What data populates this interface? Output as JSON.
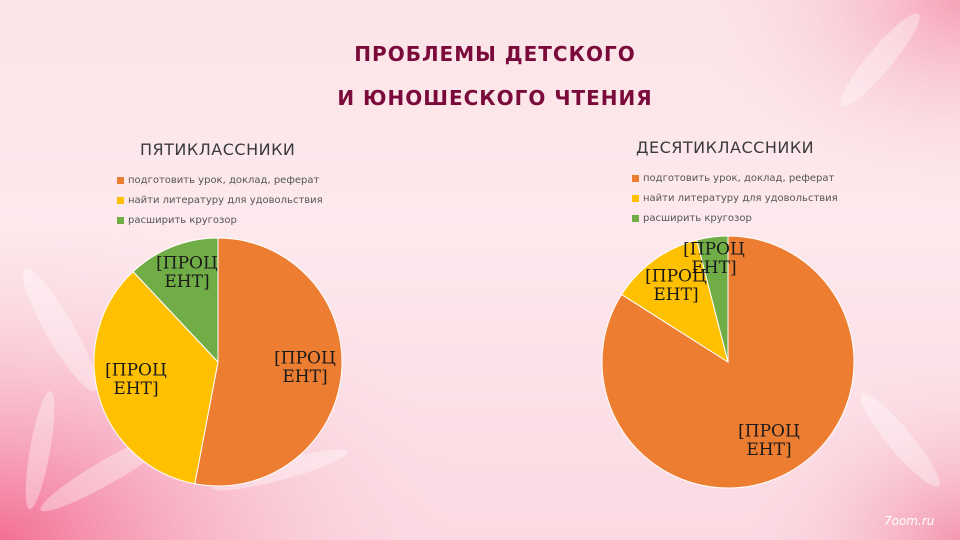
{
  "title_line1": "ПРОБЛЕМЫ ДЕТСКОГО",
  "title_line2": "И ЮНОШЕСКОГО ЧТЕНИЯ",
  "watermark": "7oom.ru",
  "colors": {
    "orange": "#ed7d31",
    "yellow": "#ffc000",
    "green": "#70ad47"
  },
  "chart_data": [
    {
      "type": "pie",
      "title": "ПЯТИКЛАССНИКИ",
      "legend": "top",
      "categories": [
        "подготовить урок, доклад, реферат",
        "найти литературу для удовольствия",
        "расширить кругозор"
      ],
      "values": [
        53,
        35,
        12
      ],
      "data_labels": [
        "[ПРОЦ\nЕНТ]",
        "[ПРОЦ\nЕНТ]",
        "[ПРОЦ\nЕНТ]"
      ]
    },
    {
      "type": "pie",
      "title": "ДЕСЯТИКЛАССНИКИ",
      "legend": "top",
      "categories": [
        "подготовить урок, доклад, реферат",
        "найти литературу для удовольствия",
        "расширить кругозор"
      ],
      "values": [
        84,
        12,
        4
      ],
      "data_labels": [
        "[ПРОЦ\nЕНТ]",
        "[ПРОЦ\nЕНТ]",
        "[ПРОЦ\nЕНТ]"
      ]
    }
  ]
}
